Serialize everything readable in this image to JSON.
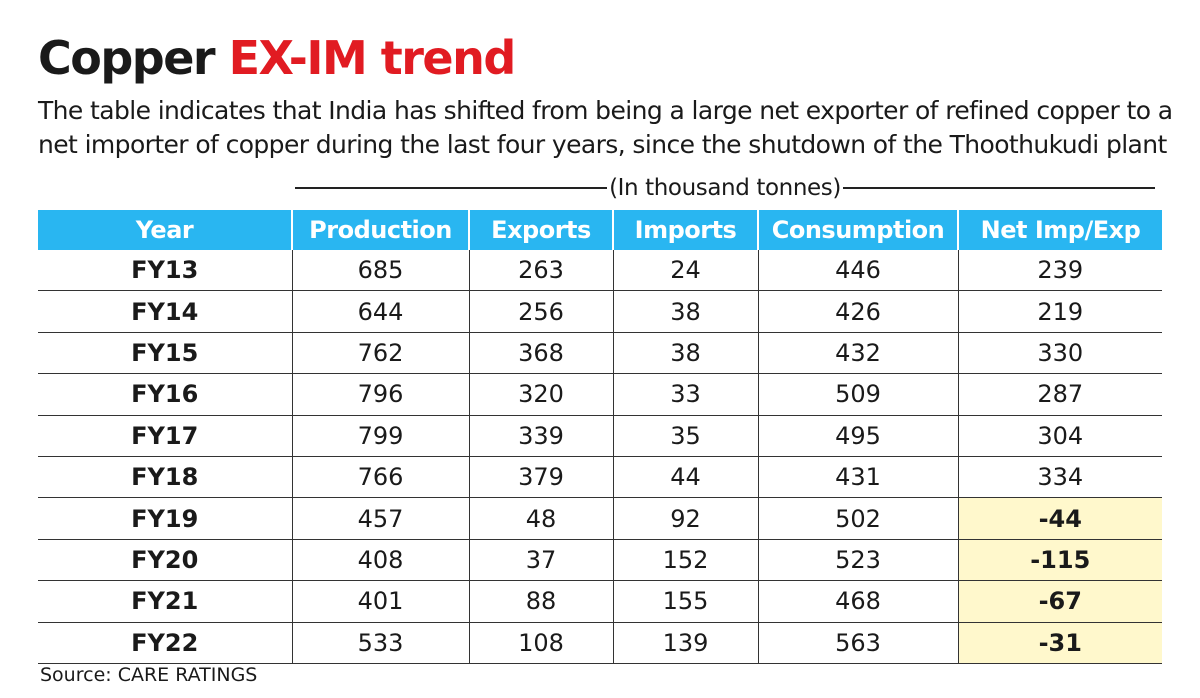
{
  "title": {
    "part1": "Copper",
    "part2": "EX-IM trend",
    "accent_color": "#e11b22"
  },
  "subtitle": "The table indicates that India has shifted from being a large net exporter of refined copper to a net importer of copper during the last four years, since the shutdown of the Thoothukudi plant",
  "unit_note": "(In thousand tonnes)",
  "source": "Source: CARE RATINGS",
  "colors": {
    "header_bg": "#29b6f1",
    "highlight_bg": "#fff8cc"
  },
  "chart_data": {
    "type": "table",
    "columns": [
      "Year",
      "Production",
      "Exports",
      "Imports",
      "Consumption",
      "Net Imp/Exp"
    ],
    "rows": [
      [
        "FY13",
        "685",
        "263",
        "24",
        "446",
        "239"
      ],
      [
        "FY14",
        "644",
        "256",
        "38",
        "426",
        "219"
      ],
      [
        "FY15",
        "762",
        "368",
        "38",
        "432",
        "330"
      ],
      [
        "FY16",
        "796",
        "320",
        "33",
        "509",
        "287"
      ],
      [
        "FY17",
        "799",
        "339",
        "35",
        "495",
        "304"
      ],
      [
        "FY18",
        "766",
        "379",
        "44",
        "431",
        "334"
      ],
      [
        "FY19",
        "457",
        "48",
        "92",
        "502",
        "-44"
      ],
      [
        "FY20",
        "408",
        "37",
        "152",
        "523",
        "-115"
      ],
      [
        "FY21",
        "401",
        "88",
        "155",
        "468",
        "-67"
      ],
      [
        "FY22",
        "533",
        "108",
        "139",
        "563",
        "-31"
      ]
    ],
    "highlighted_cells": "Net Imp/Exp values for FY19–FY22 (net imports)"
  }
}
